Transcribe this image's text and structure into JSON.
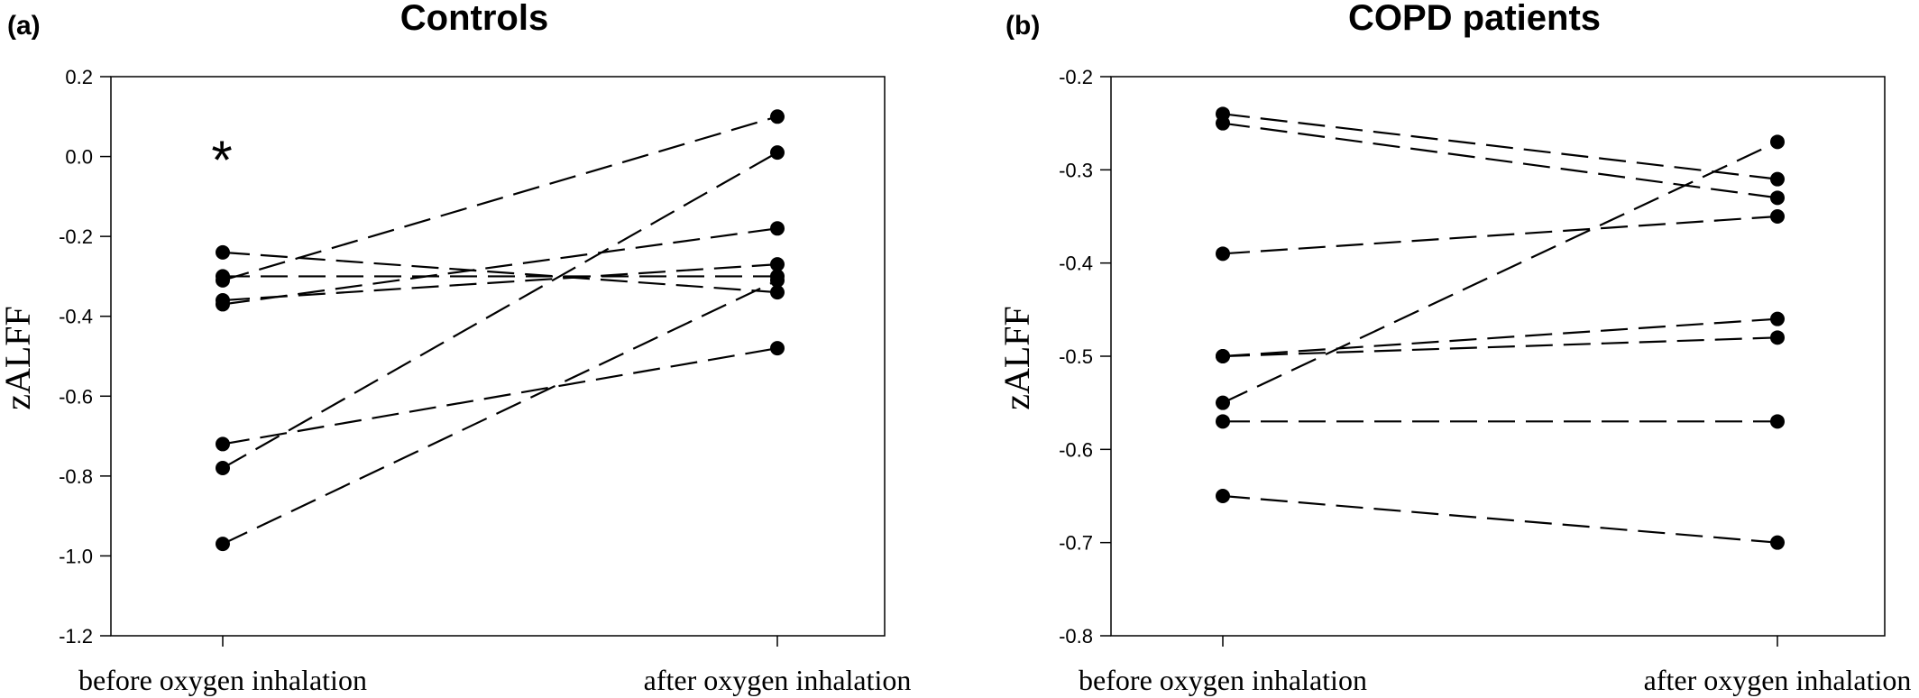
{
  "chart_data": [
    {
      "type": "line",
      "panel_label": "(a)",
      "title": "Controls",
      "ylabel": "zALFF",
      "xlabel": "",
      "categories": [
        "before oxygen inhalation",
        "after oxygen inhalation"
      ],
      "ylim": [
        -1.2,
        0.2
      ],
      "yticks": [
        "0.2",
        "0.0",
        "-0.2",
        "-0.4",
        "-0.6",
        "-0.8",
        "-1.0",
        "-1.2"
      ],
      "annotation": "*",
      "grid": false,
      "series": [
        {
          "values": [
            -0.31,
            0.1
          ]
        },
        {
          "values": [
            -0.78,
            0.01
          ]
        },
        {
          "values": [
            -0.37,
            -0.18
          ]
        },
        {
          "values": [
            -0.36,
            -0.27
          ]
        },
        {
          "values": [
            -0.3,
            -0.3
          ]
        },
        {
          "values": [
            -0.24,
            -0.34
          ]
        },
        {
          "values": [
            -0.97,
            -0.31
          ]
        },
        {
          "values": [
            -0.72,
            -0.48
          ]
        }
      ]
    },
    {
      "type": "line",
      "panel_label": "(b)",
      "title": "COPD patients",
      "ylabel": "zALFF",
      "xlabel": "",
      "categories": [
        "before oxygen inhalation",
        "after oxygen inhalation"
      ],
      "ylim": [
        -0.8,
        -0.2
      ],
      "yticks": [
        "-0.2",
        "-0.3",
        "-0.4",
        "-0.5",
        "-0.6",
        "-0.7",
        "-0.8"
      ],
      "grid": false,
      "series": [
        {
          "values": [
            -0.24,
            -0.31
          ]
        },
        {
          "values": [
            -0.25,
            -0.33
          ]
        },
        {
          "values": [
            -0.55,
            -0.27
          ]
        },
        {
          "values": [
            -0.39,
            -0.35
          ]
        },
        {
          "values": [
            -0.5,
            -0.46
          ]
        },
        {
          "values": [
            -0.5,
            -0.48
          ]
        },
        {
          "values": [
            -0.57,
            -0.57
          ]
        },
        {
          "values": [
            -0.65,
            -0.7
          ]
        }
      ]
    }
  ]
}
